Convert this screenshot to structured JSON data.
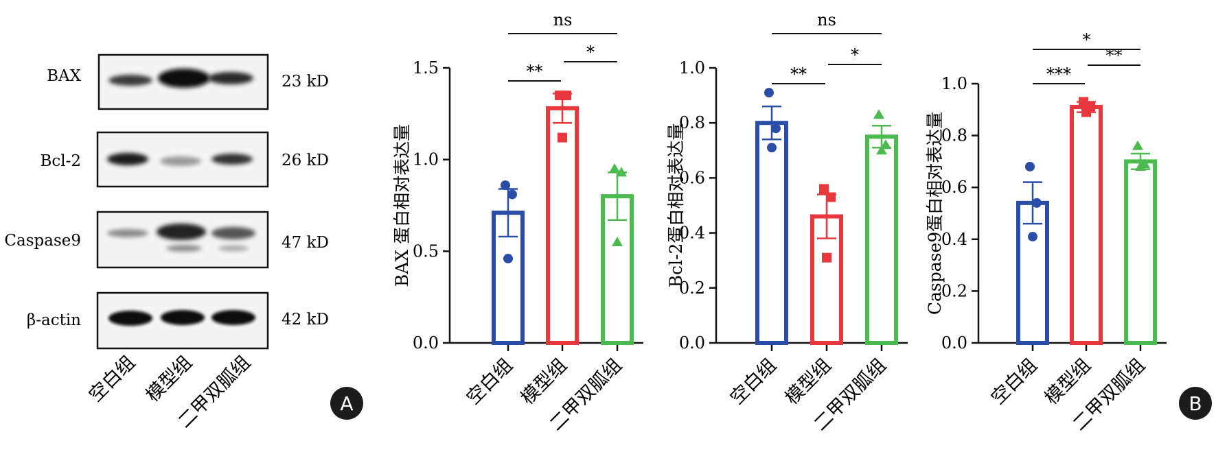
{
  "panel_a": {
    "label": "A",
    "groups": [
      "空白组",
      "模型组",
      "二甲双胍组"
    ],
    "blots": [
      {
        "name": "BAX",
        "kd": "23 kD"
      },
      {
        "name": "Bcl-2",
        "kd": "26 kD"
      },
      {
        "name": "Caspase9",
        "kd": "47 kD"
      },
      {
        "name": "β-actin",
        "kd": "42 kD"
      }
    ]
  },
  "panel_b": {
    "label": "B"
  },
  "colors": {
    "blank": "#2a4ea8",
    "model": "#e8383d",
    "metformin": "#4cbb4f"
  },
  "chart_data": [
    {
      "type": "bar",
      "ylabel": "BAX 蛋白相对表达量",
      "ylim": [
        0,
        1.5
      ],
      "yticks": [
        "0.0",
        "0.5",
        "1.0",
        "1.5"
      ],
      "categories": [
        "空白组",
        "模型组",
        "二甲双胍组"
      ],
      "values": [
        0.71,
        1.28,
        0.8
      ],
      "errors": [
        0.13,
        0.08,
        0.13
      ],
      "points": [
        [
          0.86,
          0.81,
          0.46
        ],
        [
          1.35,
          1.35,
          1.12
        ],
        [
          0.95,
          0.93,
          0.55
        ]
      ],
      "significance": [
        {
          "from": 0,
          "to": 1,
          "label": "**"
        },
        {
          "from": 1,
          "to": 2,
          "label": "*"
        },
        {
          "from": 0,
          "to": 2,
          "label": "ns"
        }
      ]
    },
    {
      "type": "bar",
      "ylabel": "Bcl-2蛋白相对表达量",
      "ylim": [
        0,
        1.0
      ],
      "yticks": [
        "0.0",
        "0.2",
        "0.4",
        "0.6",
        "0.8",
        "1.0"
      ],
      "categories": [
        "空白组",
        "模型组",
        "二甲双胍组"
      ],
      "values": [
        0.8,
        0.46,
        0.75
      ],
      "errors": [
        0.06,
        0.08,
        0.04
      ],
      "points": [
        [
          0.91,
          0.78,
          0.71
        ],
        [
          0.56,
          0.53,
          0.31
        ],
        [
          0.83,
          0.72,
          0.7
        ]
      ],
      "significance": [
        {
          "from": 0,
          "to": 1,
          "label": "**"
        },
        {
          "from": 1,
          "to": 2,
          "label": "*"
        },
        {
          "from": 0,
          "to": 2,
          "label": "ns"
        }
      ]
    },
    {
      "type": "bar",
      "ylabel": "Caspase9蛋白相对表达量",
      "ylim": [
        0,
        1.0
      ],
      "yticks": [
        "0.0",
        "0.2",
        "0.4",
        "0.6",
        "0.8",
        "1.0"
      ],
      "categories": [
        "空白组",
        "模型组",
        "二甲双胍组"
      ],
      "values": [
        0.54,
        0.91,
        0.7
      ],
      "errors": [
        0.08,
        0.02,
        0.03
      ],
      "points": [
        [
          0.68,
          0.54,
          0.41
        ],
        [
          0.93,
          0.91,
          0.89
        ],
        [
          0.76,
          0.69,
          0.68
        ]
      ],
      "significance": [
        {
          "from": 0,
          "to": 1,
          "label": "***"
        },
        {
          "from": 1,
          "to": 2,
          "label": "**"
        },
        {
          "from": 0,
          "to": 2,
          "label": "*"
        }
      ]
    }
  ]
}
